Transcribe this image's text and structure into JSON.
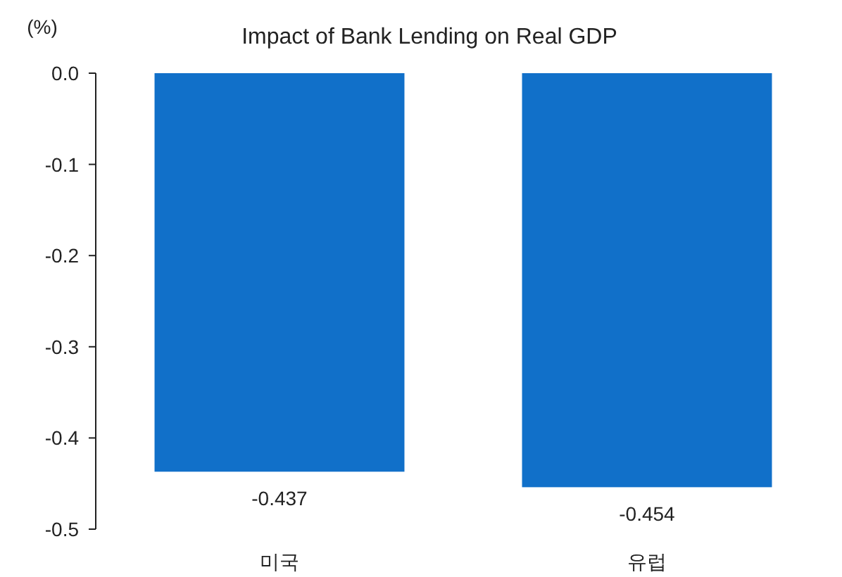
{
  "chart_data": {
    "type": "bar",
    "title": "Impact of Bank Lending on Real GDP",
    "ylabel": "(%)",
    "categories": [
      "미국",
      "유럽"
    ],
    "values": [
      -0.437,
      -0.454
    ],
    "color": "#1170c9",
    "ylim": [
      -0.5,
      0
    ],
    "yticks": [
      {
        "value": 0,
        "label": "0.0"
      },
      {
        "value": -0.1,
        "label": "-0.1"
      },
      {
        "value": -0.2,
        "label": "-0.2"
      },
      {
        "value": -0.3,
        "label": "-0.3"
      },
      {
        "value": -0.4,
        "label": "-0.4"
      },
      {
        "value": -0.5,
        "label": "-0.5"
      }
    ],
    "data_labels": true
  }
}
